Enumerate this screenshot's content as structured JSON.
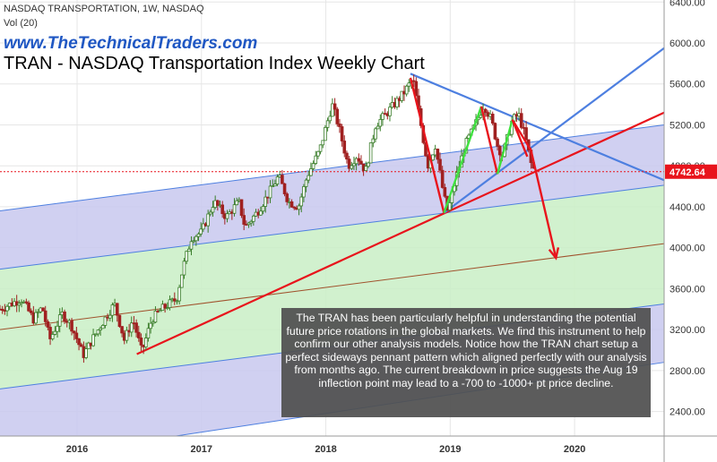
{
  "header": {
    "symbol_line": "NASDAQ TRANSPORTATION, 1W, NASDAQ",
    "volume_line": "Vol (20)",
    "website": "www.TheTechnicalTraders.com",
    "title": "TRAN - NASDAQ Transportation Index Weekly Chart"
  },
  "commentary": "The TRAN has been particularly helpful in understanding the potential future price rotations in the global markets.  We find this instrument to help confirm our other analysis models. Notice how the TRAN chart setup a perfect sideways pennant pattern which aligned perfectly with our analysis from months ago.  The current breakdown in price suggests the Aug 19 inflection point may lead to a -700 to -1000+ pt price decline.",
  "colors": {
    "bull_candle": "#3a7d2a",
    "bear_candle": "#a02020",
    "blue_channel_fill": "#c8c8ee",
    "green_channel_fill": "#c9efc6",
    "blue_line": "#4d7fe0",
    "red_line": "#e8141c",
    "green_line": "#3ee23e",
    "brown_line": "#a0522d",
    "price_tag": "#e8141c"
  },
  "chart_data": {
    "type": "candlestick",
    "title": "TRAN - NASDAQ Transportation Index Weekly Chart",
    "timeframe": "1W",
    "x_ticks": [
      "2016",
      "2017",
      "2018",
      "2019",
      "2020"
    ],
    "x_tick_years": [
      2016,
      2017,
      2018,
      2019,
      2020
    ],
    "x_range": [
      2015.38,
      2020.72
    ],
    "y_ticks": [
      "2400.00",
      "2800.00",
      "3200.00",
      "3600.00",
      "4000.00",
      "4400.00",
      "4800.00",
      "5200.00",
      "5600.00",
      "6000.00",
      "6400.00"
    ],
    "y_tick_values": [
      2400,
      2800,
      3200,
      3600,
      4000,
      4400,
      4800,
      5200,
      5600,
      6000,
      6400
    ],
    "ylim": [
      2160,
      6420
    ],
    "grid": true,
    "last_price": 4742.64,
    "last_price_label": "4742.64",
    "price_path": [
      [
        2015.38,
        3400
      ],
      [
        2015.55,
        3500
      ],
      [
        2015.65,
        3300
      ],
      [
        2015.72,
        3420
      ],
      [
        2015.78,
        3100
      ],
      [
        2015.88,
        3350
      ],
      [
        2015.95,
        3250
      ],
      [
        2016.05,
        2950
      ],
      [
        2016.12,
        3100
      ],
      [
        2016.22,
        3300
      ],
      [
        2016.3,
        3450
      ],
      [
        2016.38,
        3100
      ],
      [
        2016.45,
        3300
      ],
      [
        2016.52,
        2980
      ],
      [
        2016.6,
        3300
      ],
      [
        2016.68,
        3400
      ],
      [
        2016.8,
        3500
      ],
      [
        2016.85,
        3800
      ],
      [
        2016.92,
        4100
      ],
      [
        2017.0,
        4150
      ],
      [
        2017.1,
        4450
      ],
      [
        2017.2,
        4300
      ],
      [
        2017.3,
        4450
      ],
      [
        2017.35,
        4200
      ],
      [
        2017.45,
        4350
      ],
      [
        2017.55,
        4550
      ],
      [
        2017.62,
        4700
      ],
      [
        2017.7,
        4450
      ],
      [
        2017.78,
        4400
      ],
      [
        2017.85,
        4700
      ],
      [
        2017.95,
        4950
      ],
      [
        2018.05,
        5400
      ],
      [
        2018.1,
        5200
      ],
      [
        2018.18,
        4800
      ],
      [
        2018.25,
        4900
      ],
      [
        2018.32,
        4750
      ],
      [
        2018.4,
        5200
      ],
      [
        2018.48,
        5300
      ],
      [
        2018.55,
        5400
      ],
      [
        2018.62,
        5500
      ],
      [
        2018.7,
        5650
      ],
      [
        2018.75,
        5300
      ],
      [
        2018.82,
        4800
      ],
      [
        2018.88,
        5000
      ],
      [
        2018.95,
        4500
      ],
      [
        2018.98,
        4350
      ],
      [
        2019.05,
        4700
      ],
      [
        2019.12,
        5000
      ],
      [
        2019.2,
        5200
      ],
      [
        2019.27,
        5400
      ],
      [
        2019.33,
        5250
      ],
      [
        2019.38,
        5000
      ],
      [
        2019.42,
        4900
      ],
      [
        2019.5,
        5250
      ],
      [
        2019.55,
        5300
      ],
      [
        2019.6,
        5100
      ],
      [
        2019.65,
        4820
      ],
      [
        2019.68,
        4742.64
      ]
    ],
    "trendlines": [
      {
        "id": "upper-channel-line",
        "color": "blue",
        "from": [
          2015.38,
          4360
        ],
        "to": [
          2020.72,
          5200
        ]
      },
      {
        "id": "middle-channel-line",
        "color": "blue",
        "from": [
          2015.38,
          3790
        ],
        "to": [
          2020.72,
          4610
        ]
      },
      {
        "id": "lower-channel-line",
        "color": "blue",
        "from": [
          2015.38,
          2620
        ],
        "to": [
          2020.72,
          3450
        ]
      },
      {
        "id": "bottom-channel-line",
        "color": "blue",
        "from": [
          2015.38,
          1900
        ],
        "to": [
          2020.72,
          2880
        ]
      },
      {
        "id": "brown-midline",
        "color": "brown",
        "from": [
          2015.38,
          3200
        ],
        "to": [
          2020.72,
          4040
        ]
      },
      {
        "id": "red-support-line",
        "color": "red",
        "from": [
          2016.48,
          2960
        ],
        "to": [
          2020.72,
          5320
        ]
      },
      {
        "id": "blue-resistance-line",
        "color": "blue",
        "from": [
          2018.68,
          5700
        ],
        "to": [
          2020.72,
          4660
        ]
      },
      {
        "id": "blue-rising-line",
        "color": "blue",
        "from": [
          2018.95,
          4340
        ],
        "to": [
          2020.72,
          5950
        ]
      }
    ],
    "pattern_legs": [
      {
        "color": "red",
        "points": [
          [
            2018.68,
            5660
          ],
          [
            2018.95,
            4340
          ]
        ]
      },
      {
        "color": "green",
        "points": [
          [
            2018.95,
            4340
          ],
          [
            2019.25,
            5380
          ]
        ]
      },
      {
        "color": "red",
        "points": [
          [
            2019.25,
            5380
          ],
          [
            2019.38,
            4720
          ]
        ]
      },
      {
        "color": "green",
        "points": [
          [
            2019.38,
            4720
          ],
          [
            2019.5,
            5250
          ]
        ]
      },
      {
        "color": "red",
        "points": [
          [
            2019.5,
            5250
          ],
          [
            2019.62,
            4890
          ]
        ]
      }
    ],
    "projection_arrow": {
      "color": "red",
      "points": [
        [
          2019.5,
          5250
        ],
        [
          2019.65,
          4950
        ],
        [
          2019.85,
          3900
        ]
      ]
    }
  }
}
